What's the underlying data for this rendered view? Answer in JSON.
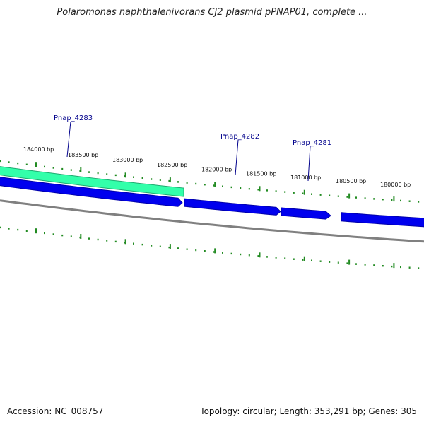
{
  "title": "Polaromonas naphthalenivorans CJ2 plasmid pPNAP01, complete ...",
  "footer": {
    "accession": "Accession: NC_008757",
    "summary": "Topology: circular; Length: 353,291 bp; Genes: 305"
  },
  "scale": {
    "unit": "bp",
    "labels": [
      "184000 bp",
      "183500 bp",
      "183000 bp",
      "182500 bp",
      "182000 bp",
      "181500 bp",
      "181000 bp",
      "180500 bp",
      "180000 bp"
    ]
  },
  "genes": [
    {
      "name": "Pnap_4283",
      "color": "#33ffaa"
    },
    {
      "name": "Pnap_4282",
      "color": "#0000ee"
    },
    {
      "name": "Pnap_4281",
      "color": "#0000ee"
    }
  ],
  "colors": {
    "tick": "#228b22",
    "backbone": "#808080",
    "gene_label": "#00008b",
    "highlight": "#33ffaa",
    "cds": "#0000ee"
  }
}
